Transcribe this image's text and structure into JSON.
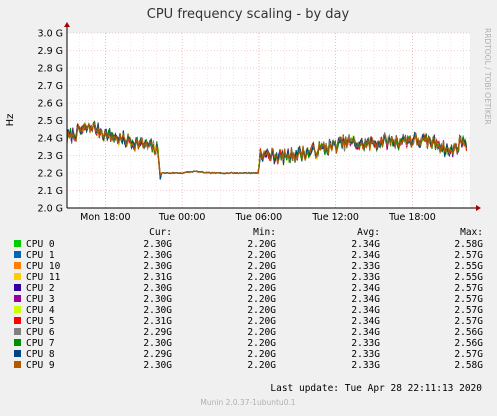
{
  "chart_data": {
    "type": "line",
    "title": "CPU frequency scaling - by day",
    "watermark": "RRDTOOL / TOBI OETIKER",
    "ylabel": "Hz",
    "ylim": [
      2.0,
      3.0
    ],
    "yticks": [
      "3.0 G",
      "2.9 G",
      "2.8 G",
      "2.7 G",
      "2.6 G",
      "2.5 G",
      "2.4 G",
      "2.3 G",
      "2.2 G",
      "2.1 G",
      "2.0 G"
    ],
    "yticks_values": [
      3.0,
      2.9,
      2.8,
      2.7,
      2.6,
      2.5,
      2.4,
      2.3,
      2.2,
      2.1,
      2.0
    ],
    "xticks": [
      "Mon 18:00",
      "Tue 00:00",
      "Tue 06:00",
      "Tue 12:00",
      "Tue 18:00"
    ],
    "xticks_hours": [
      18,
      24,
      30,
      36,
      42
    ],
    "x_range_hours": [
      15,
      46.5
    ],
    "grid": true,
    "colors": {
      "background": "#f0f0f0",
      "plot_bg": "#ffffff",
      "grid_major": "#e8a0a0",
      "grid_minor": "#f0c8c8",
      "axis": "#000000",
      "arrow": "#a80000",
      "title": "#333333",
      "text": "#000000",
      "footer": "#b0b0b0"
    },
    "profile": [
      [
        15.0,
        2.4
      ],
      [
        15.5,
        2.42
      ],
      [
        16.0,
        2.44
      ],
      [
        16.5,
        2.45
      ],
      [
        17.0,
        2.46
      ],
      [
        17.5,
        2.44
      ],
      [
        18.0,
        2.42
      ],
      [
        18.5,
        2.41
      ],
      [
        19.0,
        2.4
      ],
      [
        19.5,
        2.39
      ],
      [
        20.0,
        2.38
      ],
      [
        20.5,
        2.37
      ],
      [
        21.0,
        2.36
      ],
      [
        21.5,
        2.35
      ],
      [
        22.0,
        2.34
      ],
      [
        22.15,
        2.3
      ],
      [
        22.3,
        2.2
      ],
      [
        23.0,
        2.2
      ],
      [
        24.0,
        2.2
      ],
      [
        25.0,
        2.21
      ],
      [
        26.0,
        2.2
      ],
      [
        27.0,
        2.2
      ],
      [
        28.0,
        2.2
      ],
      [
        29.0,
        2.2
      ],
      [
        30.0,
        2.2
      ],
      [
        30.05,
        2.31
      ],
      [
        31.0,
        2.3
      ],
      [
        32.0,
        2.29
      ],
      [
        33.0,
        2.31
      ],
      [
        34.0,
        2.32
      ],
      [
        35.0,
        2.34
      ],
      [
        36.0,
        2.36
      ],
      [
        37.0,
        2.38
      ],
      [
        38.0,
        2.36
      ],
      [
        39.0,
        2.37
      ],
      [
        40.0,
        2.38
      ],
      [
        41.0,
        2.38
      ],
      [
        42.0,
        2.39
      ],
      [
        43.0,
        2.38
      ],
      [
        44.0,
        2.37
      ],
      [
        44.5,
        2.34
      ],
      [
        45.0,
        2.32
      ],
      [
        45.6,
        2.36
      ],
      [
        46.0,
        2.4
      ],
      [
        46.3,
        2.3
      ]
    ],
    "series": [
      {
        "name": "CPU 0",
        "color": "#00cc00",
        "cur": "2.30G",
        "min": "2.20G",
        "avg": "2.34G",
        "max": "2.58G"
      },
      {
        "name": "CPU 1",
        "color": "#0066b3",
        "cur": "2.30G",
        "min": "2.20G",
        "avg": "2.34G",
        "max": "2.57G"
      },
      {
        "name": "CPU 10",
        "color": "#ff8000",
        "cur": "2.30G",
        "min": "2.20G",
        "avg": "2.33G",
        "max": "2.55G"
      },
      {
        "name": "CPU 11",
        "color": "#ffcc00",
        "cur": "2.31G",
        "min": "2.20G",
        "avg": "2.33G",
        "max": "2.55G"
      },
      {
        "name": "CPU 2",
        "color": "#330099",
        "cur": "2.30G",
        "min": "2.20G",
        "avg": "2.34G",
        "max": "2.57G"
      },
      {
        "name": "CPU 3",
        "color": "#990099",
        "cur": "2.30G",
        "min": "2.20G",
        "avg": "2.34G",
        "max": "2.57G"
      },
      {
        "name": "CPU 4",
        "color": "#ccff00",
        "cur": "2.30G",
        "min": "2.20G",
        "avg": "2.34G",
        "max": "2.57G"
      },
      {
        "name": "CPU 5",
        "color": "#ff0000",
        "cur": "2.31G",
        "min": "2.20G",
        "avg": "2.34G",
        "max": "2.57G"
      },
      {
        "name": "CPU 6",
        "color": "#808080",
        "cur": "2.29G",
        "min": "2.20G",
        "avg": "2.34G",
        "max": "2.56G"
      },
      {
        "name": "CPU 7",
        "color": "#008f00",
        "cur": "2.30G",
        "min": "2.20G",
        "avg": "2.33G",
        "max": "2.56G"
      },
      {
        "name": "CPU 8",
        "color": "#00487d",
        "cur": "2.29G",
        "min": "2.20G",
        "avg": "2.33G",
        "max": "2.57G"
      },
      {
        "name": "CPU 9",
        "color": "#b35a00",
        "cur": "2.30G",
        "min": "2.20G",
        "avg": "2.33G",
        "max": "2.58G"
      }
    ]
  },
  "legend_headers": {
    "cur": "Cur:",
    "min": "Min:",
    "avg": "Avg:",
    "max": "Max:"
  },
  "last_update": "Last update: Tue Apr 28 22:11:13 2020",
  "footer": "Munin 2.0.37-1ubuntu0.1"
}
